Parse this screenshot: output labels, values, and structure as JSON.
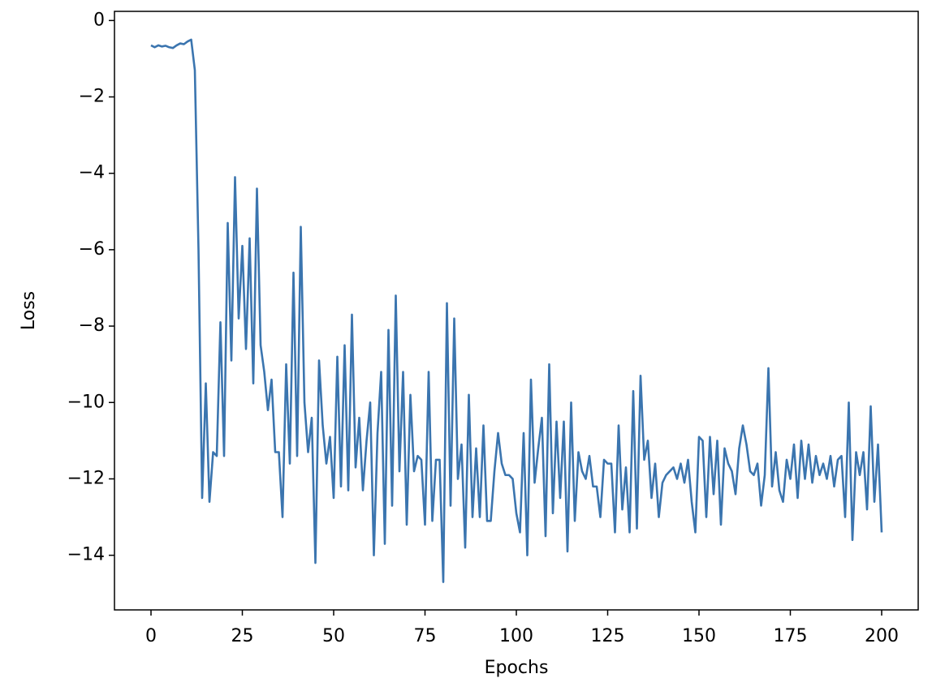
{
  "chart_data": {
    "type": "line",
    "xlabel": "Epochs",
    "ylabel": "Loss",
    "xlim": [
      -10,
      210
    ],
    "ylim": [
      -15.43,
      0.24
    ],
    "xticks": [
      0,
      25,
      50,
      75,
      100,
      125,
      150,
      175,
      200
    ],
    "yticks": [
      {
        "value": -14,
        "label": "−14"
      },
      {
        "value": -12,
        "label": "−12"
      },
      {
        "value": -10,
        "label": "−10"
      },
      {
        "value": -8,
        "label": "−8"
      },
      {
        "value": -6,
        "label": "−6"
      },
      {
        "value": -4,
        "label": "−4"
      },
      {
        "value": -2,
        "label": "−2"
      },
      0
    ],
    "x": [
      0,
      1,
      2,
      3,
      4,
      5,
      6,
      7,
      8,
      9,
      10,
      11,
      12,
      13,
      14,
      15,
      16,
      17,
      18,
      19,
      20,
      21,
      22,
      23,
      24,
      25,
      26,
      27,
      28,
      29,
      30,
      31,
      32,
      33,
      34,
      35,
      36,
      37,
      38,
      39,
      40,
      41,
      42,
      43,
      44,
      45,
      46,
      47,
      48,
      49,
      50,
      51,
      52,
      53,
      54,
      55,
      56,
      57,
      58,
      59,
      60,
      61,
      62,
      63,
      64,
      65,
      66,
      67,
      68,
      69,
      70,
      71,
      72,
      73,
      74,
      75,
      76,
      77,
      78,
      79,
      80,
      81,
      82,
      83,
      84,
      85,
      86,
      87,
      88,
      89,
      90,
      91,
      92,
      93,
      94,
      95,
      96,
      97,
      98,
      99,
      100,
      101,
      102,
      103,
      104,
      105,
      106,
      107,
      108,
      109,
      110,
      111,
      112,
      113,
      114,
      115,
      116,
      117,
      118,
      119,
      120,
      121,
      122,
      123,
      124,
      125,
      126,
      127,
      128,
      129,
      130,
      131,
      132,
      133,
      134,
      135,
      136,
      137,
      138,
      139,
      140,
      141,
      142,
      143,
      144,
      145,
      146,
      147,
      148,
      149,
      150,
      151,
      152,
      153,
      154,
      155,
      156,
      157,
      158,
      159,
      160,
      161,
      162,
      163,
      164,
      165,
      166,
      167,
      168,
      169,
      170,
      171,
      172,
      173,
      174,
      175,
      176,
      177,
      178,
      179,
      180,
      181,
      182,
      183,
      184,
      185,
      186,
      187,
      188,
      189,
      190,
      191,
      192,
      193,
      194,
      195,
      196,
      197,
      198,
      199,
      200
    ],
    "series": [
      {
        "color": "#3b75af",
        "values": [
          -0.65,
          -0.7,
          -0.65,
          -0.68,
          -0.66,
          -0.7,
          -0.72,
          -0.65,
          -0.6,
          -0.62,
          -0.55,
          -0.5,
          -1.3,
          -6.0,
          -12.5,
          -9.5,
          -12.6,
          -11.3,
          -11.4,
          -7.9,
          -11.4,
          -5.3,
          -8.9,
          -4.1,
          -7.8,
          -5.9,
          -8.6,
          -5.7,
          -9.5,
          -4.4,
          -8.5,
          -9.2,
          -10.2,
          -9.4,
          -11.3,
          -11.3,
          -13.0,
          -9.0,
          -11.6,
          -6.6,
          -11.4,
          -5.4,
          -10.0,
          -11.3,
          -10.4,
          -14.2,
          -8.9,
          -10.6,
          -11.6,
          -10.9,
          -12.5,
          -8.8,
          -12.2,
          -8.5,
          -12.3,
          -7.7,
          -11.7,
          -10.4,
          -12.3,
          -11.0,
          -10.0,
          -14.0,
          -10.8,
          -9.2,
          -13.7,
          -8.1,
          -12.7,
          -7.2,
          -11.8,
          -9.2,
          -13.2,
          -9.8,
          -11.8,
          -11.4,
          -11.5,
          -13.2,
          -9.2,
          -13.1,
          -11.5,
          -11.5,
          -14.7,
          -7.4,
          -12.7,
          -7.8,
          -12.0,
          -11.1,
          -13.8,
          -9.8,
          -13.0,
          -11.2,
          -13.0,
          -10.6,
          -13.1,
          -13.1,
          -11.8,
          -10.8,
          -11.6,
          -11.9,
          -11.9,
          -12.0,
          -12.9,
          -13.4,
          -10.8,
          -14.0,
          -9.4,
          -12.1,
          -11.2,
          -10.4,
          -13.5,
          -9.0,
          -12.9,
          -10.5,
          -12.5,
          -10.5,
          -13.9,
          -10.0,
          -13.1,
          -11.3,
          -11.8,
          -12.0,
          -11.4,
          -12.2,
          -12.2,
          -13.0,
          -11.5,
          -11.6,
          -11.6,
          -13.4,
          -10.6,
          -12.8,
          -11.7,
          -13.4,
          -9.7,
          -13.3,
          -9.3,
          -11.5,
          -11.0,
          -12.5,
          -11.6,
          -13.0,
          -12.1,
          -11.9,
          -11.8,
          -11.7,
          -12.0,
          -11.6,
          -12.1,
          -11.5,
          -12.6,
          -13.4,
          -10.9,
          -11.0,
          -13.0,
          -10.9,
          -12.4,
          -11.0,
          -13.2,
          -11.2,
          -11.6,
          -11.8,
          -12.4,
          -11.2,
          -10.6,
          -11.1,
          -11.8,
          -11.9,
          -11.6,
          -12.7,
          -11.9,
          -9.1,
          -12.2,
          -11.3,
          -12.3,
          -12.6,
          -11.5,
          -12.0,
          -11.1,
          -12.5,
          -11.0,
          -12.0,
          -11.1,
          -12.1,
          -11.4,
          -11.9,
          -11.6,
          -12.0,
          -11.4,
          -12.2,
          -11.5,
          -11.4,
          -13.0,
          -10.0,
          -13.6,
          -11.3,
          -11.9,
          -11.3,
          -12.8,
          -10.1,
          -12.6,
          -11.1,
          -13.4
        ]
      }
    ]
  }
}
